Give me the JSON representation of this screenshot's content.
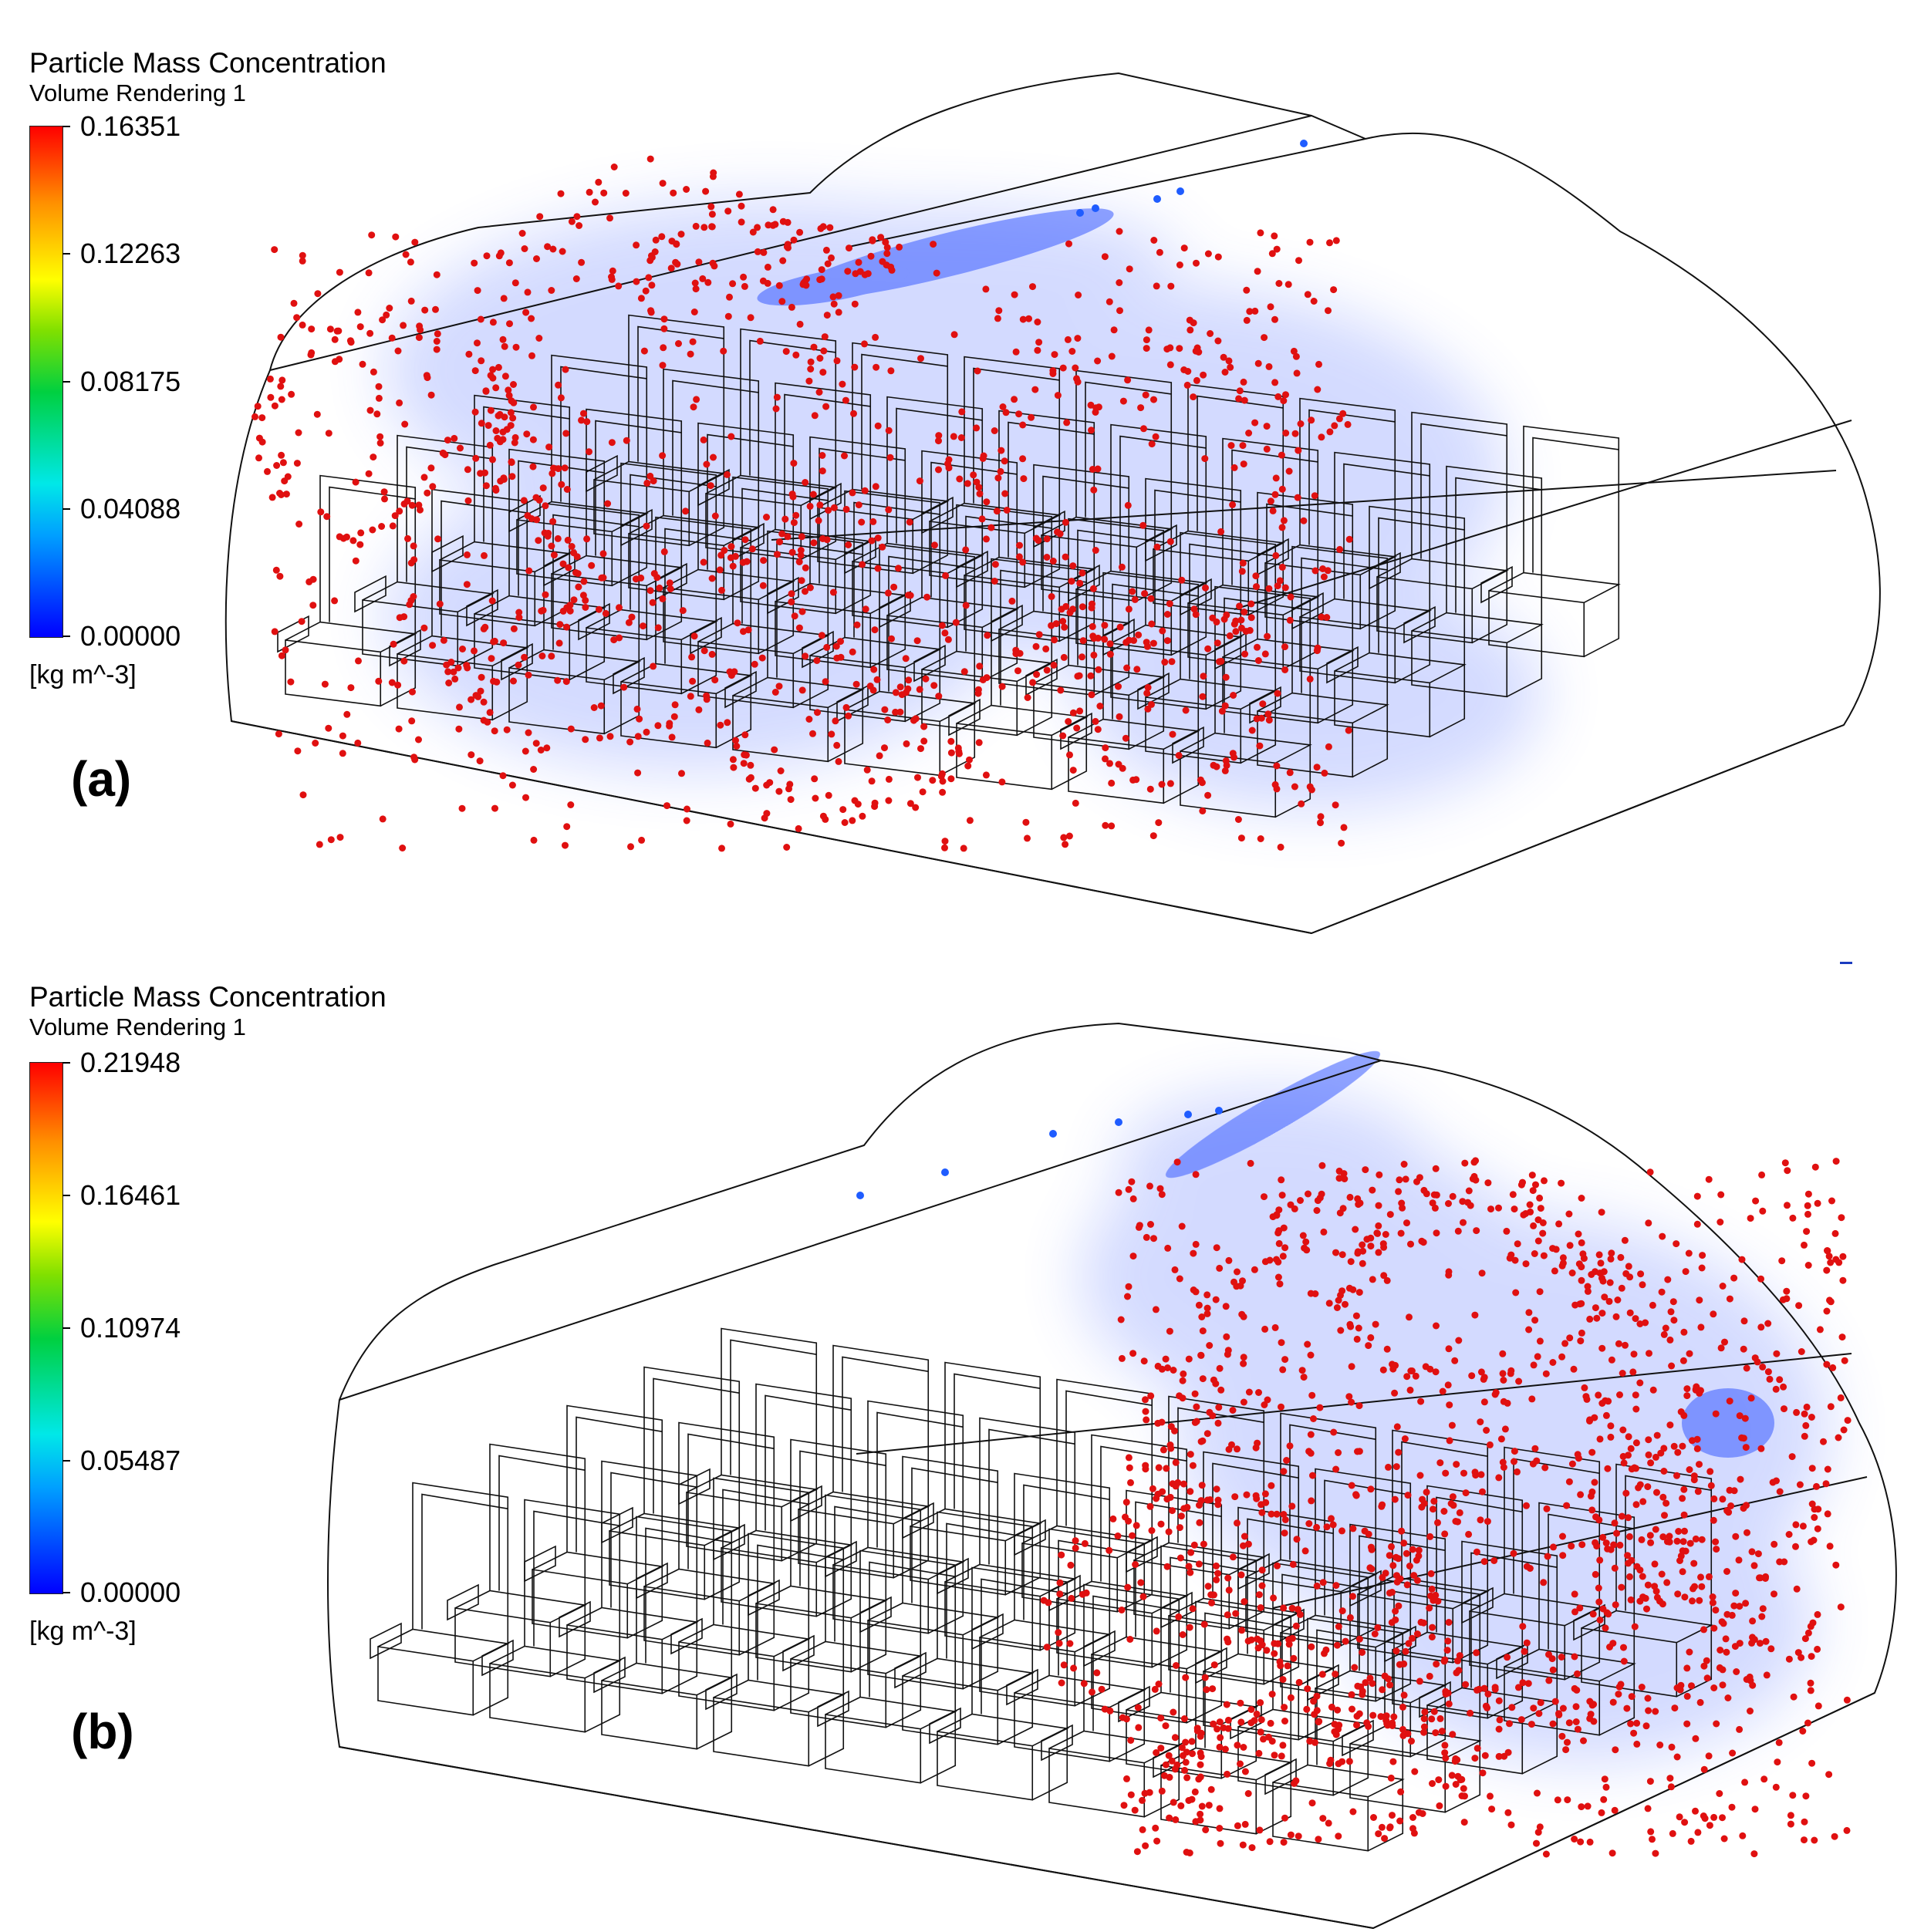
{
  "panels": [
    {
      "label": "(a)",
      "legend": {
        "title": "Particle Mass Concentration",
        "subtitle": "Volume Rendering 1",
        "ticks": [
          "0.16351",
          "0.12263",
          "0.08175",
          "0.04088",
          "0.00000"
        ],
        "unit": "[kg m^-3]"
      }
    },
    {
      "label": "(b)",
      "legend": {
        "title": "Particle Mass Concentration",
        "subtitle": "Volume Rendering 1",
        "ticks": [
          "0.21948",
          "0.16461",
          "0.10974",
          "0.05487",
          "0.00000"
        ],
        "unit": "[kg m^-3]"
      }
    }
  ],
  "colors": {
    "particle": "#e01010",
    "haze": "#3a5cff",
    "wire": "#111111",
    "colormap": [
      "#0000ff",
      "#00a0ff",
      "#00e8e8",
      "#00d040",
      "#80e000",
      "#ffff00",
      "#ff9000",
      "#ff0000"
    ]
  }
}
